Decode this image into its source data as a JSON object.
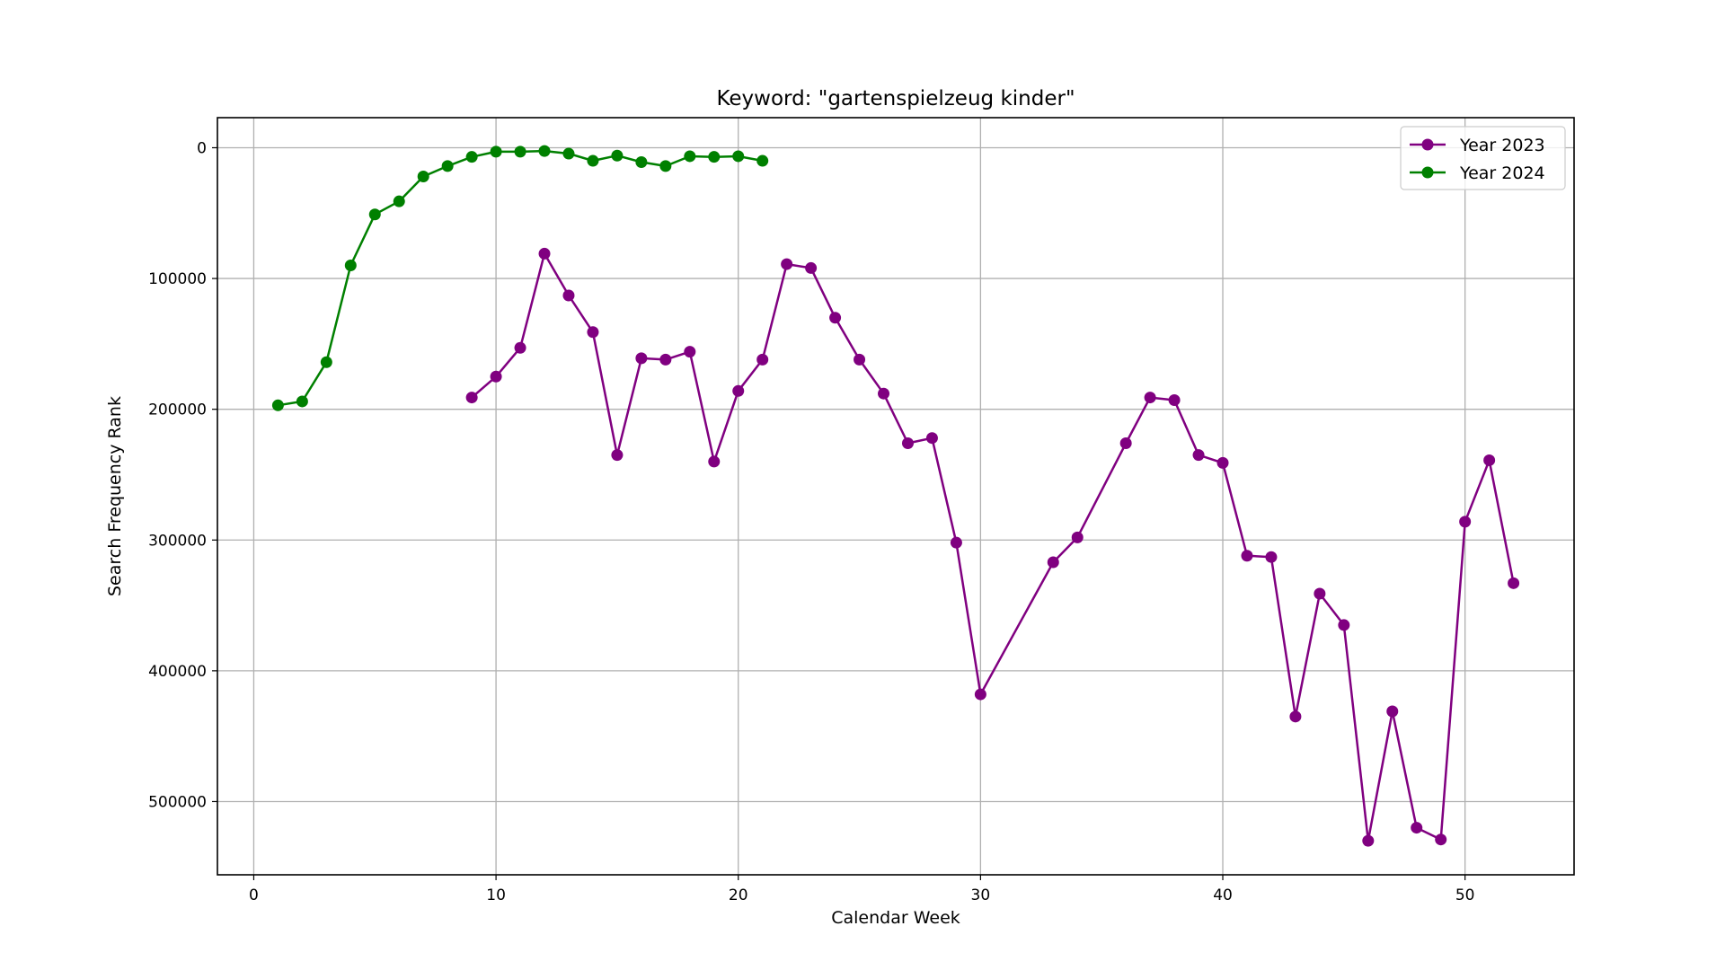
{
  "chart_data": {
    "type": "line",
    "title": "Keyword: \"gartenspielzeug kinder\"",
    "xlabel": "Calendar Week",
    "ylabel": "Search Frequency Rank",
    "xlim": [
      -1.5,
      54.5
    ],
    "ylim": [
      556000,
      -23000
    ],
    "y_inverted": true,
    "x_ticks": [
      0,
      10,
      20,
      30,
      40,
      50
    ],
    "y_ticks": [
      0,
      100000,
      200000,
      300000,
      400000,
      500000
    ],
    "x_tick_labels": [
      "0",
      "10",
      "20",
      "30",
      "40",
      "50"
    ],
    "y_tick_labels": [
      "0",
      "100000",
      "200000",
      "300000",
      "400000",
      "500000"
    ],
    "grid": true,
    "legend_position": "top-right",
    "series": [
      {
        "name": "Year 2023",
        "color": "#800080",
        "marker": "circle",
        "x": [
          9,
          10,
          11,
          12,
          13,
          14,
          15,
          16,
          17,
          18,
          19,
          20,
          21,
          22,
          23,
          24,
          25,
          26,
          27,
          28,
          29,
          30,
          33,
          34,
          36,
          37,
          38,
          39,
          40,
          41,
          42,
          43,
          44,
          45,
          46,
          47,
          48,
          49,
          50,
          51,
          52
        ],
        "y": [
          191000,
          175000,
          153000,
          81000,
          113000,
          141000,
          235000,
          161000,
          162000,
          156000,
          240000,
          186000,
          162000,
          89000,
          92000,
          130000,
          162000,
          188000,
          226000,
          222000,
          302000,
          418000,
          317000,
          298000,
          226000,
          191000,
          193000,
          235000,
          241000,
          312000,
          313000,
          435000,
          341000,
          365000,
          530000,
          431000,
          520000,
          529000,
          286000,
          239000,
          333000
        ]
      },
      {
        "name": "Year 2024",
        "color": "#008000",
        "marker": "circle",
        "x": [
          1,
          2,
          3,
          4,
          5,
          6,
          7,
          8,
          9,
          10,
          11,
          12,
          13,
          14,
          15,
          16,
          17,
          18,
          19,
          20,
          21
        ],
        "y": [
          197000,
          194000,
          164000,
          90000,
          51000,
          41000,
          22000,
          14000,
          7000,
          3000,
          3000,
          2500,
          4500,
          10000,
          6000,
          11000,
          14000,
          6500,
          7000,
          6500,
          10000
        ]
      }
    ]
  }
}
